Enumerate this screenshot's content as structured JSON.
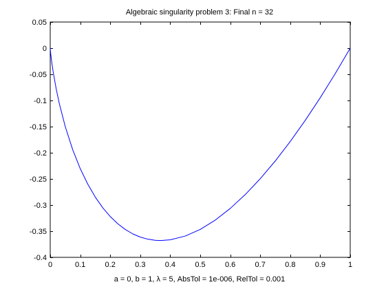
{
  "chart_data": {
    "type": "line",
    "title": "Algebraic singularity problem 3:   Final n = 32",
    "xlabel": "a = 0,   b = 1,   λ = 5,   AbsTol = 1e-006,   RelTol = 0.001",
    "ylabel": "",
    "xlim": [
      0,
      1
    ],
    "ylim": [
      -0.4,
      0.05
    ],
    "xticks": [
      0,
      0.1,
      0.2,
      0.3,
      0.4,
      0.5,
      0.6,
      0.7,
      0.8,
      0.9,
      1
    ],
    "xtick_labels": [
      "0",
      "0.1",
      "0.2",
      "0.3",
      "0.4",
      "0.5",
      "0.6",
      "0.7",
      "0.8",
      "0.9",
      "1"
    ],
    "yticks": [
      0.05,
      0,
      -0.05,
      -0.1,
      -0.15,
      -0.2,
      -0.25,
      -0.3,
      -0.35,
      -0.4
    ],
    "ytick_labels": [
      "0.05",
      "0",
      "-0.05",
      "-0.1",
      "-0.15",
      "-0.2",
      "-0.25",
      "-0.3",
      "-0.35",
      "-0.4"
    ],
    "grid": false,
    "legend": "none",
    "series": [
      {
        "color": "#0000ff",
        "x": [
          0,
          0.0005,
          0.002,
          0.005,
          0.01,
          0.02,
          0.03,
          0.05,
          0.075,
          0.1,
          0.125,
          0.15,
          0.175,
          0.2,
          0.225,
          0.25,
          0.275,
          0.3,
          0.325,
          0.35,
          0.3679,
          0.4,
          0.45,
          0.5,
          0.55,
          0.6,
          0.65,
          0.7,
          0.75,
          0.8,
          0.85,
          0.9,
          0.95,
          1
        ],
        "y": [
          0,
          -0.0038,
          -0.0124,
          -0.0265,
          -0.046,
          -0.0782,
          -0.1052,
          -0.1498,
          -0.1943,
          -0.2303,
          -0.2599,
          -0.2846,
          -0.3052,
          -0.3219,
          -0.3357,
          -0.3466,
          -0.3551,
          -0.3612,
          -0.3652,
          -0.3674,
          -0.3679,
          -0.3665,
          -0.3593,
          -0.3466,
          -0.3288,
          -0.3065,
          -0.28,
          -0.2497,
          -0.2158,
          -0.1785,
          -0.1381,
          -0.0948,
          -0.0487,
          0
        ]
      }
    ]
  }
}
